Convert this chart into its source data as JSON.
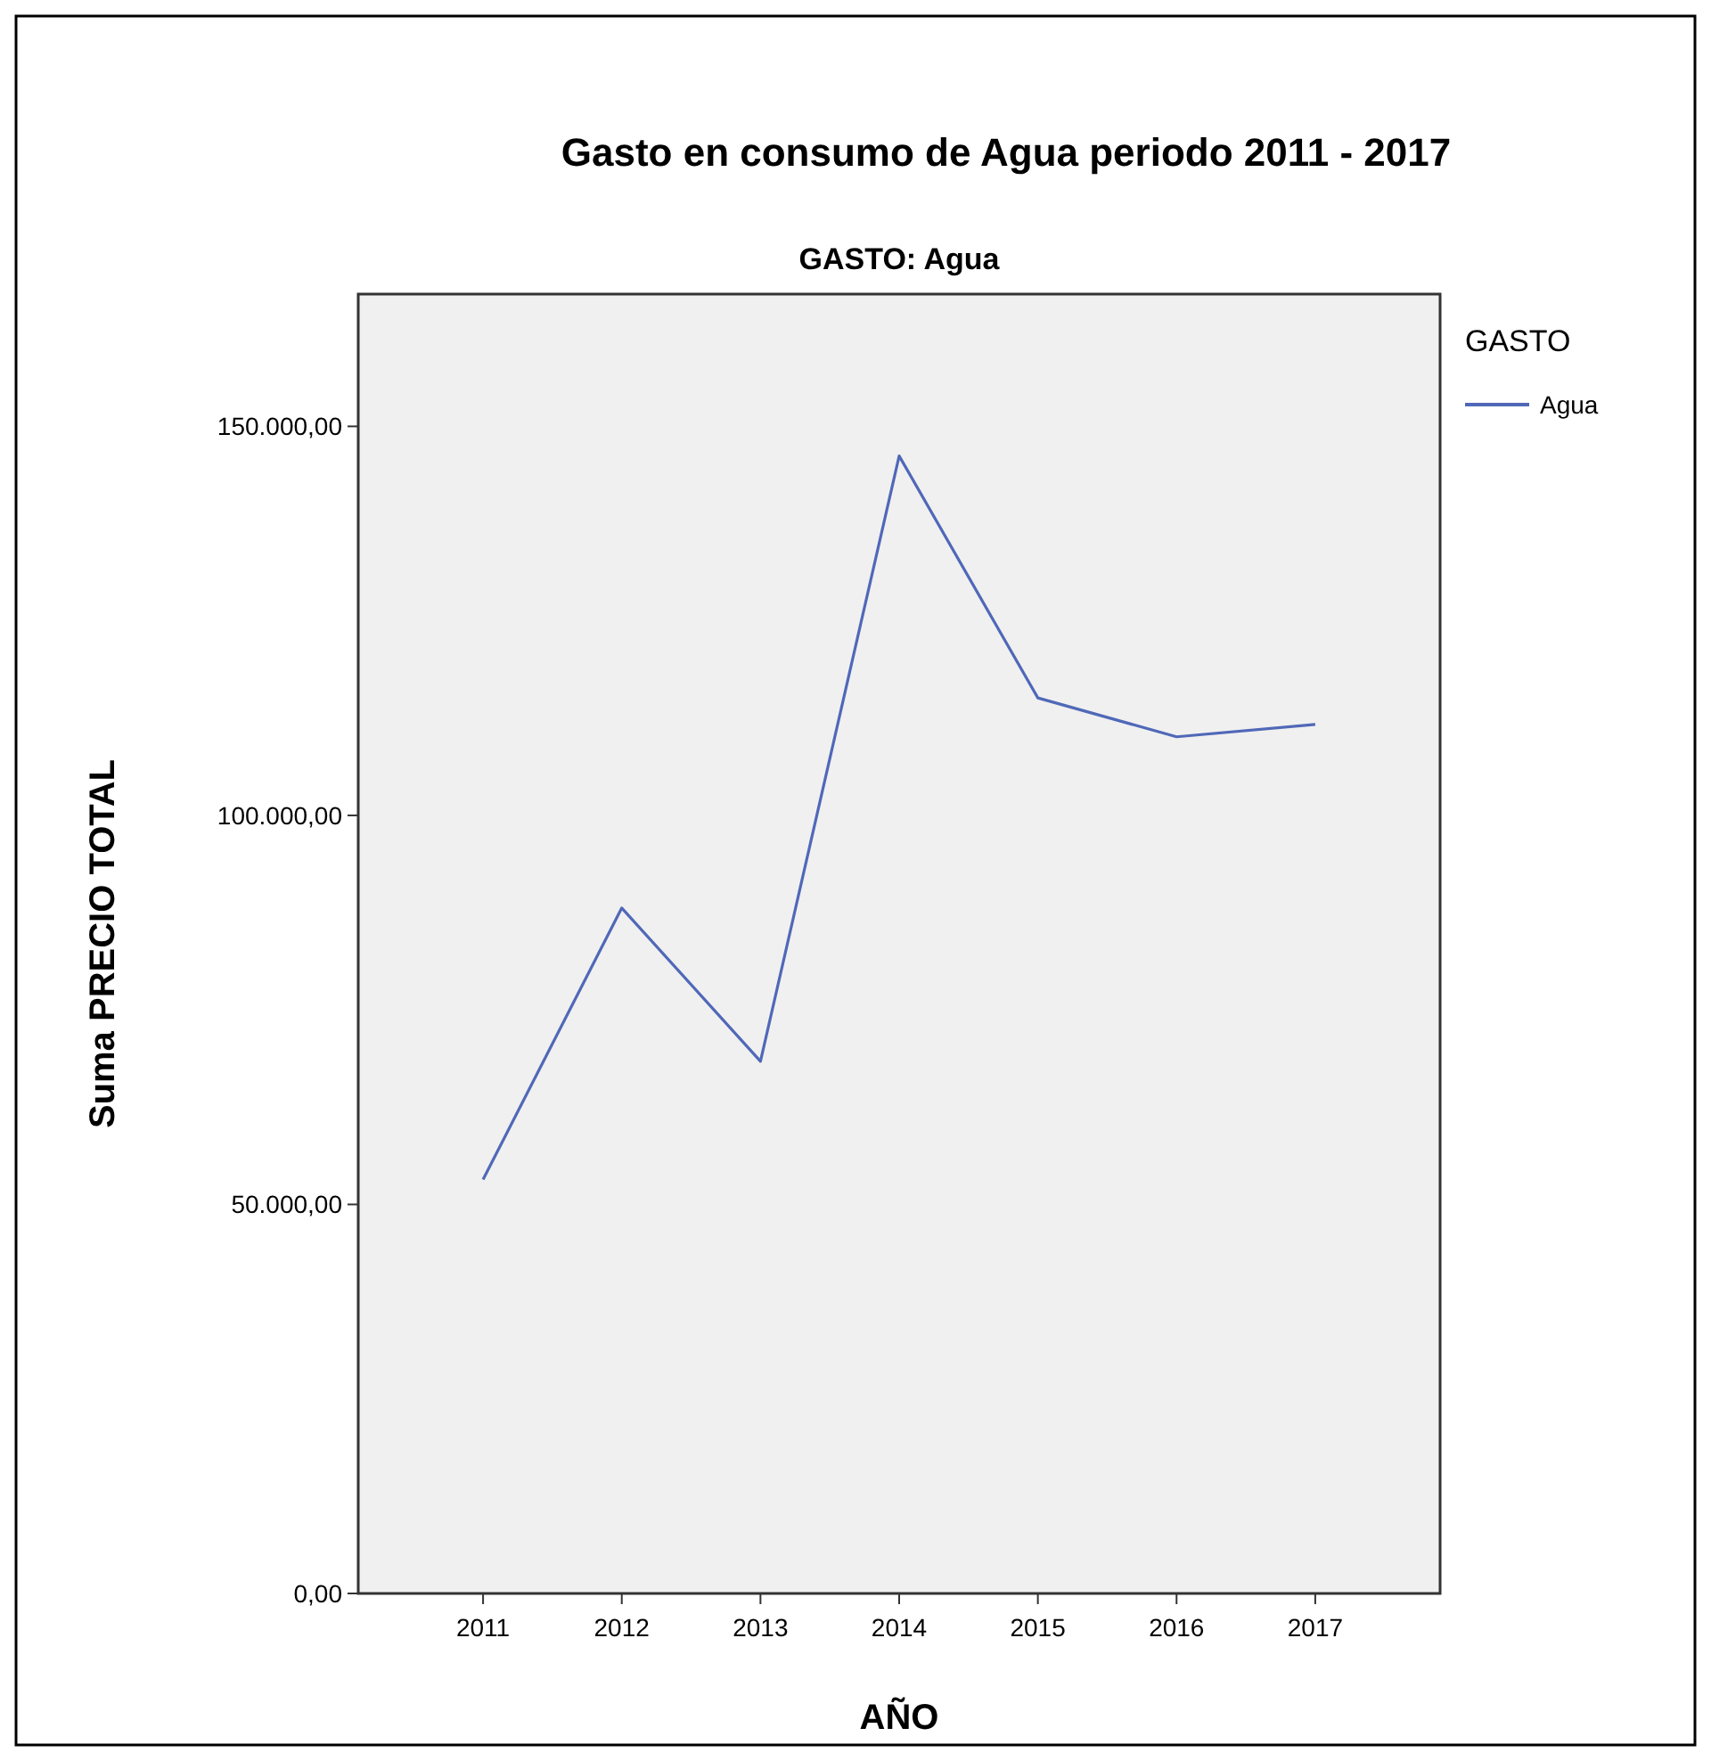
{
  "chart_data": {
    "type": "line",
    "title": "Gasto en consumo de Agua periodo 2011 - 2017",
    "subtitle": "GASTO: Agua",
    "xlabel": "AÑO",
    "ylabel": "Suma PRECIO TOTAL",
    "legend_title": "GASTO",
    "categories": [
      "2011",
      "2012",
      "2013",
      "2014",
      "2015",
      "2016",
      "2017"
    ],
    "series": [
      {
        "name": "Agua",
        "color": "#5068b8",
        "values": [
          53200,
          88100,
          68400,
          146200,
          115100,
          110100,
          111700
        ]
      }
    ],
    "ylim": [
      0,
      167000
    ],
    "yticks": [
      {
        "value": 0,
        "label": "0,00"
      },
      {
        "value": 50000,
        "label": "50.000,00"
      },
      {
        "value": 100000,
        "label": "100.000,00"
      },
      {
        "value": 150000,
        "label": "150.000,00"
      }
    ],
    "grid": false,
    "legend": "top right",
    "marker": "none",
    "line_style": "solid"
  }
}
